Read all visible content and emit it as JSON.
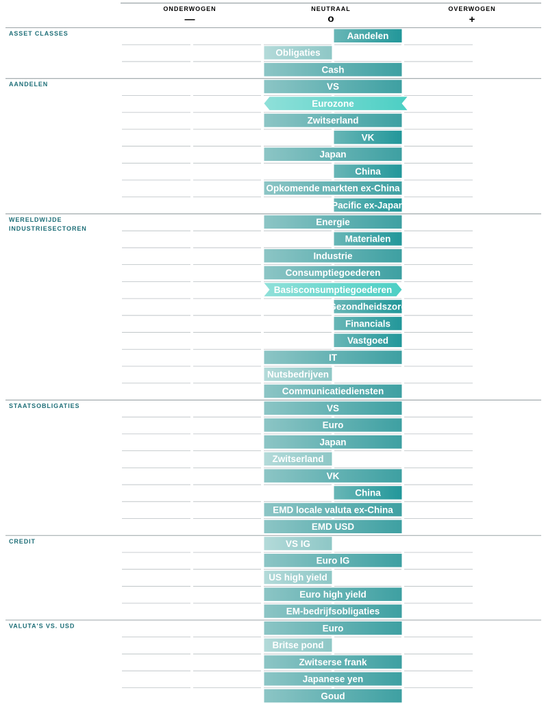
{
  "chart_data": {
    "type": "bar",
    "scale": [
      "--",
      "-",
      "0",
      "+",
      "++"
    ],
    "header": {
      "under_label": "ONDERWOGEN",
      "under_symbol": "—",
      "neutral_label": "NEUTRAAL",
      "neutral_symbol": "o",
      "over_label": "OVERWOGEN",
      "over_symbol": "+"
    },
    "groups": [
      {
        "name": "ASSET CLASSES",
        "rows": [
          {
            "label": "Aandelen",
            "value": 1
          },
          {
            "label": "Obligaties",
            "value": -1
          },
          {
            "label": "Cash",
            "value": 0
          }
        ]
      },
      {
        "name": "AANDELEN",
        "rows": [
          {
            "label": "VS",
            "value": 0
          },
          {
            "label": "Eurozone",
            "value": 0,
            "change": "decrease"
          },
          {
            "label": "Zwitserland",
            "value": 0
          },
          {
            "label": "VK",
            "value": 1
          },
          {
            "label": "Japan",
            "value": 0
          },
          {
            "label": "China",
            "value": 1
          },
          {
            "label": "Opkomende markten ex-China",
            "value": 0
          },
          {
            "label": "Pacific ex-Japan",
            "value": 1
          }
        ]
      },
      {
        "name": "WERELDWIJDE\nINDUSTRIESECTOREN",
        "rows": [
          {
            "label": "Energie",
            "value": 0
          },
          {
            "label": "Materialen",
            "value": 1
          },
          {
            "label": "Industrie",
            "value": 0
          },
          {
            "label": "Consumptiegoederen",
            "value": 0
          },
          {
            "label": "Basisconsumptiegoederen",
            "value": 0,
            "change": "increase"
          },
          {
            "label": "Gezondheidszorg",
            "value": 1
          },
          {
            "label": "Financials",
            "value": 1
          },
          {
            "label": "Vastgoed",
            "value": 1
          },
          {
            "label": "IT",
            "value": 0
          },
          {
            "label": "Nutsbedrijven",
            "value": -1
          },
          {
            "label": "Communicatiediensten",
            "value": 0
          }
        ]
      },
      {
        "name": "STAATSOBLIGATIES",
        "rows": [
          {
            "label": "VS",
            "value": 0
          },
          {
            "label": "Euro",
            "value": 0
          },
          {
            "label": "Japan",
            "value": 0
          },
          {
            "label": "Zwitserland",
            "value": -1
          },
          {
            "label": "VK",
            "value": 0
          },
          {
            "label": "China",
            "value": 1
          },
          {
            "label": "EMD locale valuta ex-China",
            "value": 0
          },
          {
            "label": "EMD USD",
            "value": 0
          }
        ]
      },
      {
        "name": "CREDIT",
        "rows": [
          {
            "label": "VS IG",
            "value": -1
          },
          {
            "label": "Euro IG",
            "value": 0
          },
          {
            "label": "US high yield",
            "value": -1
          },
          {
            "label": "Euro high yield",
            "value": 0
          },
          {
            "label": "EM-bedrijfsobligaties",
            "value": 0
          }
        ]
      },
      {
        "name": "VALUTA'S VS. USD",
        "rows": [
          {
            "label": "Euro",
            "value": 0
          },
          {
            "label": "Britse pond",
            "value": -1
          },
          {
            "label": "Zwitserse frank",
            "value": 0
          },
          {
            "label": "Japanese yen",
            "value": 0
          },
          {
            "label": "Goud",
            "value": 0
          }
        ]
      }
    ],
    "colors": {
      "overweight": "#2a9a9c",
      "neutral": "#4da8aa",
      "underweight": "#a2d2d1",
      "change": "#5fd3c9",
      "heading": "#1f6f78",
      "grid": "#9aa3a6"
    }
  }
}
